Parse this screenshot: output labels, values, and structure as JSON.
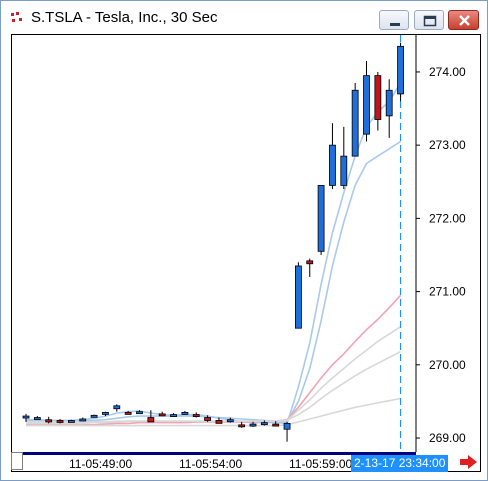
{
  "window": {
    "title": "S.TSLA - Tesla, Inc., 30 Sec",
    "icons": [
      "app-chart-icon",
      "minimize-icon",
      "maximize-icon",
      "close-icon"
    ]
  },
  "x_axis": {
    "tick_labels": [
      "11-05:49:00",
      "11-05:54:00",
      "11-05:59:00"
    ],
    "cursor_label": "2-13-17 23:34:00"
  },
  "colors": {
    "up_candle": "#1e6fd9",
    "down_candle": "#c0151b",
    "cursor_line": "#1e90ff",
    "fast_ma": "#a9c9ee",
    "slow_ma_pink": "#f2a3b3",
    "slow_ma_gray": "#d8d8d8"
  },
  "chart_data": {
    "type": "candlestick",
    "title": "S.TSLA - Tesla, Inc., 30 Sec",
    "y_axis": {
      "min": 268.85,
      "max": 274.45,
      "tick_labels": [
        "274.00",
        "273.00",
        "272.00",
        "271.00",
        "270.00",
        "269.00"
      ]
    },
    "x_axis_ticks": [
      "11-05:49:00",
      "11-05:54:00",
      "11-05:59:00"
    ],
    "candles": [
      {
        "o": 269.28,
        "h": 269.33,
        "l": 269.22,
        "c": 269.3
      },
      {
        "o": 269.28,
        "h": 269.3,
        "l": 269.26,
        "c": 269.28
      },
      {
        "o": 269.25,
        "h": 269.29,
        "l": 269.2,
        "c": 269.22
      },
      {
        "o": 269.24,
        "h": 269.26,
        "l": 269.2,
        "c": 269.23
      },
      {
        "o": 269.24,
        "h": 269.25,
        "l": 269.22,
        "c": 269.24
      },
      {
        "o": 269.25,
        "h": 269.28,
        "l": 269.23,
        "c": 269.26
      },
      {
        "o": 269.3,
        "h": 269.32,
        "l": 269.28,
        "c": 269.31
      },
      {
        "o": 269.33,
        "h": 269.36,
        "l": 269.3,
        "c": 269.35
      },
      {
        "o": 269.4,
        "h": 269.46,
        "l": 269.36,
        "c": 269.44
      },
      {
        "o": 269.35,
        "h": 269.37,
        "l": 269.32,
        "c": 269.33
      },
      {
        "o": 269.35,
        "h": 269.38,
        "l": 269.33,
        "c": 269.36
      },
      {
        "o": 269.28,
        "h": 269.38,
        "l": 269.22,
        "c": 269.22
      },
      {
        "o": 269.33,
        "h": 269.36,
        "l": 269.3,
        "c": 269.31
      },
      {
        "o": 269.32,
        "h": 269.34,
        "l": 269.3,
        "c": 269.32
      },
      {
        "o": 269.34,
        "h": 269.37,
        "l": 269.32,
        "c": 269.35
      },
      {
        "o": 269.32,
        "h": 269.35,
        "l": 269.28,
        "c": 269.31
      },
      {
        "o": 269.28,
        "h": 269.31,
        "l": 269.22,
        "c": 269.24
      },
      {
        "o": 269.24,
        "h": 269.28,
        "l": 269.2,
        "c": 269.2
      },
      {
        "o": 269.24,
        "h": 269.28,
        "l": 269.21,
        "c": 269.25
      },
      {
        "o": 269.18,
        "h": 269.22,
        "l": 269.14,
        "c": 269.16
      },
      {
        "o": 269.18,
        "h": 269.22,
        "l": 269.15,
        "c": 269.19
      },
      {
        "o": 269.2,
        "h": 269.24,
        "l": 269.17,
        "c": 269.21
      },
      {
        "o": 269.19,
        "h": 269.23,
        "l": 269.16,
        "c": 269.18
      },
      {
        "o": 269.12,
        "h": 269.22,
        "l": 268.95,
        "c": 269.2
      },
      {
        "o": 270.5,
        "h": 271.4,
        "l": 270.5,
        "c": 271.35
      },
      {
        "o": 271.42,
        "h": 271.45,
        "l": 271.2,
        "c": 271.38
      },
      {
        "o": 271.55,
        "h": 272.45,
        "l": 271.5,
        "c": 272.45
      },
      {
        "o": 272.45,
        "h": 273.3,
        "l": 272.4,
        "c": 273.0
      },
      {
        "o": 272.45,
        "h": 273.25,
        "l": 272.4,
        "c": 272.85
      },
      {
        "o": 272.85,
        "h": 273.85,
        "l": 272.85,
        "c": 273.75
      },
      {
        "o": 273.15,
        "h": 274.15,
        "l": 273.05,
        "c": 273.95
      },
      {
        "o": 273.95,
        "h": 274.0,
        "l": 273.2,
        "c": 273.35
      },
      {
        "o": 273.4,
        "h": 273.9,
        "l": 273.1,
        "c": 273.75
      },
      {
        "o": 273.7,
        "h": 274.4,
        "l": 273.6,
        "c": 274.35
      }
    ],
    "moving_averages": [
      {
        "color": "#a9c9ee",
        "values": [
          269.25,
          269.25,
          269.24,
          269.24,
          269.24,
          269.25,
          269.27,
          269.3,
          269.34,
          269.36,
          269.37,
          269.34,
          269.32,
          269.31,
          269.32,
          269.32,
          269.3,
          269.27,
          269.25,
          269.22,
          269.21,
          269.21,
          269.21,
          269.2,
          269.7,
          270.3,
          271.1,
          271.8,
          272.35,
          272.85,
          273.25,
          273.45,
          273.6,
          273.85
        ]
      },
      {
        "color": "#a9c9ee",
        "values": [
          269.23,
          269.23,
          269.23,
          269.23,
          269.23,
          269.23,
          269.24,
          269.25,
          269.27,
          269.29,
          269.3,
          269.3,
          269.3,
          269.3,
          269.3,
          269.3,
          269.29,
          269.28,
          269.27,
          269.26,
          269.25,
          269.24,
          269.23,
          269.22,
          269.5,
          269.95,
          270.6,
          271.35,
          271.95,
          272.45,
          272.75,
          272.85,
          272.95,
          273.05
        ]
      },
      {
        "color": "#f2a3b3",
        "values": [
          269.18,
          269.18,
          269.18,
          269.18,
          269.18,
          269.18,
          269.18,
          269.19,
          269.2,
          269.2,
          269.21,
          269.21,
          269.21,
          269.21,
          269.21,
          269.22,
          269.22,
          269.22,
          269.22,
          269.22,
          269.22,
          269.22,
          269.23,
          269.25,
          269.42,
          269.62,
          269.82,
          270.0,
          270.15,
          270.32,
          270.48,
          270.62,
          270.78,
          270.95
        ]
      },
      {
        "color": "#d8d8d8",
        "values": [
          269.2,
          269.2,
          269.2,
          269.2,
          269.2,
          269.2,
          269.21,
          269.21,
          269.22,
          269.23,
          269.23,
          269.23,
          269.23,
          269.23,
          269.23,
          269.23,
          269.23,
          269.23,
          269.23,
          269.23,
          269.23,
          269.23,
          269.23,
          269.24,
          269.38,
          269.52,
          269.68,
          269.82,
          269.95,
          270.08,
          270.2,
          270.32,
          270.42,
          270.52
        ]
      },
      {
        "color": "#d8d8d8",
        "values": [
          269.22,
          269.22,
          269.22,
          269.22,
          269.22,
          269.22,
          269.22,
          269.22,
          269.23,
          269.23,
          269.23,
          269.23,
          269.23,
          269.23,
          269.23,
          269.23,
          269.23,
          269.23,
          269.23,
          269.23,
          269.23,
          269.23,
          269.23,
          269.24,
          269.32,
          269.42,
          269.54,
          269.65,
          269.75,
          269.85,
          269.94,
          270.02,
          270.1,
          270.18
        ]
      },
      {
        "color": "#d8d8d8",
        "values": [
          269.17,
          269.17,
          269.17,
          269.17,
          269.17,
          269.17,
          269.17,
          269.17,
          269.17,
          269.17,
          269.17,
          269.17,
          269.17,
          269.17,
          269.17,
          269.17,
          269.17,
          269.17,
          269.17,
          269.17,
          269.17,
          269.17,
          269.17,
          269.18,
          269.22,
          269.26,
          269.3,
          269.34,
          269.38,
          269.42,
          269.45,
          269.48,
          269.51,
          269.54
        ]
      }
    ]
  }
}
